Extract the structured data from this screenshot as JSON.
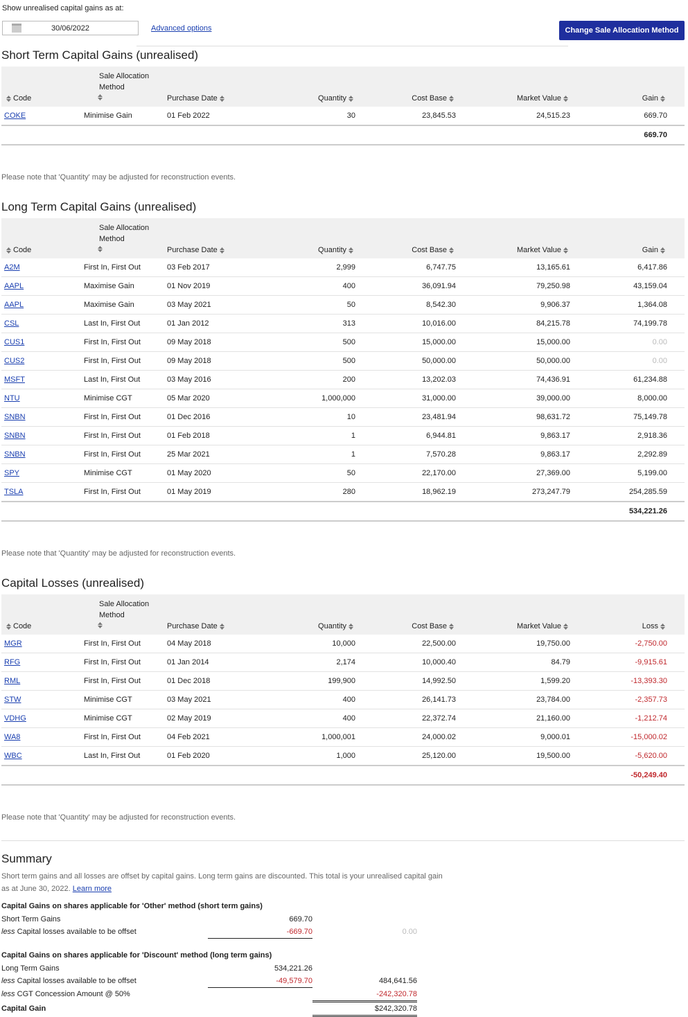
{
  "header": {
    "date_label": "Show unrealised capital gains as at:",
    "date": "30/06/2022",
    "advanced": "Advanced options",
    "button": "Change Sale Allocation Method"
  },
  "short_term": {
    "title": "Short Term Capital Gains (unrealised)",
    "columns": [
      "Code",
      "Sale Allocation Method",
      "Purchase Date",
      "Quantity",
      "Cost Base",
      "Market Value",
      "Gain"
    ],
    "rows": [
      [
        "COKE",
        "Minimise Gain",
        "01 Feb 2022",
        "30",
        "23,845.53",
        "24,515.23",
        "669.70"
      ]
    ],
    "total": "669.70",
    "note": "Please note that 'Quantity' may be adjusted for reconstruction events."
  },
  "long_term": {
    "title": "Long Term Capital Gains (unrealised)",
    "columns": [
      "Code",
      "Sale Allocation Method",
      "Purchase Date",
      "Quantity",
      "Cost Base",
      "Market Value",
      "Gain"
    ],
    "rows": [
      [
        "A2M",
        "First In, First Out",
        "03 Feb 2017",
        "2,999",
        "6,747.75",
        "13,165.61",
        "6,417.86"
      ],
      [
        "AAPL",
        "Maximise Gain",
        "01 Nov 2019",
        "400",
        "36,091.94",
        "79,250.98",
        "43,159.04"
      ],
      [
        "AAPL",
        "Maximise Gain",
        "03 May 2021",
        "50",
        "8,542.30",
        "9,906.37",
        "1,364.08"
      ],
      [
        "CSL",
        "Last In, First Out",
        "01 Jan 2012",
        "313",
        "10,016.00",
        "84,215.78",
        "74,199.78"
      ],
      [
        "CUS1",
        "First In, First Out",
        "09 May 2018",
        "500",
        "15,000.00",
        "15,000.00",
        "0.00"
      ],
      [
        "CUS2",
        "First In, First Out",
        "09 May 2018",
        "500",
        "50,000.00",
        "50,000.00",
        "0.00"
      ],
      [
        "MSFT",
        "Last In, First Out",
        "03 May 2016",
        "200",
        "13,202.03",
        "74,436.91",
        "61,234.88"
      ],
      [
        "NTU",
        "Minimise CGT",
        "05 Mar 2020",
        "1,000,000",
        "31,000.00",
        "39,000.00",
        "8,000.00"
      ],
      [
        "SNBN",
        "First In, First Out",
        "01 Dec 2016",
        "10",
        "23,481.94",
        "98,631.72",
        "75,149.78"
      ],
      [
        "SNBN",
        "First In, First Out",
        "01 Feb 2018",
        "1",
        "6,944.81",
        "9,863.17",
        "2,918.36"
      ],
      [
        "SNBN",
        "First In, First Out",
        "25 Mar 2021",
        "1",
        "7,570.28",
        "9,863.17",
        "2,292.89"
      ],
      [
        "SPY",
        "Minimise CGT",
        "01 May 2020",
        "50",
        "22,170.00",
        "27,369.00",
        "5,199.00"
      ],
      [
        "TSLA",
        "First In, First Out",
        "01 May 2019",
        "280",
        "18,962.19",
        "273,247.79",
        "254,285.59"
      ]
    ],
    "total": "534,221.26",
    "note": "Please note that 'Quantity' may be adjusted for reconstruction events."
  },
  "losses": {
    "title": "Capital Losses (unrealised)",
    "columns": [
      "Code",
      "Sale Allocation Method",
      "Purchase Date",
      "Quantity",
      "Cost Base",
      "Market Value",
      "Loss"
    ],
    "rows": [
      [
        "MGR",
        "First In, First Out",
        "04 May 2018",
        "10,000",
        "22,500.00",
        "19,750.00",
        "-2,750.00"
      ],
      [
        "RFG",
        "First In, First Out",
        "01 Jan 2014",
        "2,174",
        "10,000.40",
        "84.79",
        "-9,915.61"
      ],
      [
        "RML",
        "First In, First Out",
        "01 Dec 2018",
        "199,900",
        "14,992.50",
        "1,599.20",
        "-13,393.30"
      ],
      [
        "STW",
        "Minimise CGT",
        "03 May 2021",
        "400",
        "26,141.73",
        "23,784.00",
        "-2,357.73"
      ],
      [
        "VDHG",
        "Minimise CGT",
        "02 May 2019",
        "400",
        "22,372.74",
        "21,160.00",
        "-1,212.74"
      ],
      [
        "WA8",
        "First In, First Out",
        "04 Feb 2021",
        "1,000,001",
        "24,000.02",
        "9,000.01",
        "-15,000.02"
      ],
      [
        "WBC",
        "Last In, First Out",
        "01 Feb 2020",
        "1,000",
        "25,120.00",
        "19,500.00",
        "-5,620.00"
      ]
    ],
    "total": "-50,249.40",
    "note": "Please note that 'Quantity' may be adjusted for reconstruction events."
  },
  "summary": {
    "title": "Summary",
    "text": "Short term gains and all losses are offset by capital gains. Long term gains are discounted. This total is your unrealised capital gain as at June 30, 2022.",
    "link": "Learn more",
    "other": {
      "heading": "Capital Gains on shares applicable for 'Other' method (short term gains)",
      "rows": [
        {
          "label": "Short Term Gains",
          "col1": "669.70"
        },
        {
          "prefix": "less",
          "label": "Capital losses available to be offset",
          "col1": "-669.70",
          "col2": "0.00"
        }
      ]
    },
    "discount": {
      "heading": "Capital Gains on shares applicable for 'Discount' method (long term gains)",
      "rows": [
        {
          "label": "Long Term Gains",
          "col1": "534,221.26"
        },
        {
          "prefix": "less",
          "label": "Capital losses available to be offset",
          "col1": "-49,579.70",
          "col2": "484,641.56"
        },
        {
          "prefix": "less",
          "label": "CGT Concession Amount @ 50%",
          "col2": "-242,320.78"
        },
        {
          "label": "Capital Gain",
          "col2": "$242,320.78"
        }
      ]
    }
  }
}
